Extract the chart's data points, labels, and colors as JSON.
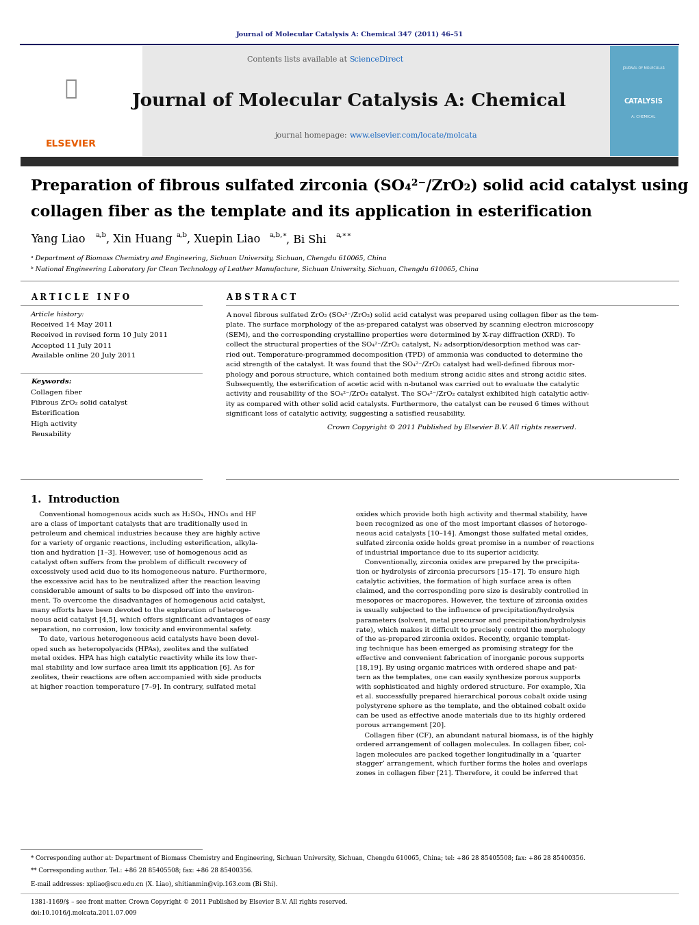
{
  "page_width": 10.21,
  "page_height": 13.51,
  "bg_color": "#ffffff",
  "header_journal_ref": "Journal of Molecular Catalysis A: Chemical 347 (2011) 46–51",
  "header_ref_color": "#1a237e",
  "contents_text": "Contents lists available at ",
  "sciencedirect_text": "ScienceDirect",
  "sciencedirect_color": "#1565c0",
  "journal_title": "Journal of Molecular Catalysis A: Chemical",
  "journal_homepage_text": "journal homepage: ",
  "journal_url": "www.elsevier.com/locate/molcata",
  "journal_url_color": "#1565c0",
  "header_bg_color": "#e8e8e8",
  "dark_bar_color": "#2d2d2d",
  "paper_title_line1": "Preparation of fibrous sulfated zirconia (SO₄²⁻/ZrO₂) solid acid catalyst using",
  "paper_title_line2": "collagen fiber as the template and its application in esterification",
  "affil_a": "ᵃ Department of Biomass Chemistry and Engineering, Sichuan University, Sichuan, Chengdu 610065, China",
  "affil_b": "ᵇ National Engineering Laboratory for Clean Technology of Leather Manufacture, Sichuan University, Sichuan, Chengdu 610065, China",
  "section_article_info": "A R T I C L E   I N F O",
  "section_abstract": "A B S T R A C T",
  "article_history_label": "Article history:",
  "received": "Received 14 May 2011",
  "received_revised": "Received in revised form 10 July 2011",
  "accepted": "Accepted 11 July 2011",
  "available_online": "Available online 20 July 2011",
  "keywords_label": "Keywords:",
  "keyword1": "Collagen fiber",
  "keyword2": "Fibrous ZrO₂ solid catalyst",
  "keyword3": "Esterification",
  "keyword4": "High activity",
  "keyword5": "Reusability",
  "copyright_text": "Crown Copyright © 2011 Published by Elsevier B.V. All rights reserved.",
  "intro_heading": "1.  Introduction",
  "footnote_star": "* Corresponding author at: Department of Biomass Chemistry and Engineering, Sichuan University, Sichuan, Chengdu 610065, China; tel: +86 28 85405508; fax: +86 28 85400356.",
  "footnote_dstar": "** Corresponding author. Tel.: +86 28 85405508; fax: +86 28 85400356.",
  "footnote_email": "E-mail addresses: xpliao@scu.edu.cn (X. Liao), shitianmin@vip.163.com (Bi Shi).",
  "footer_issn": "1381-1169/$ – see front matter. Crown Copyright © 2011 Published by Elsevier B.V. All rights reserved.",
  "footer_doi": "doi:10.1016/j.molcata.2011.07.009",
  "text_color": "#000000",
  "link_color": "#1565c0",
  "abstract_lines": [
    "A novel fibrous sulfated ZrO₂ (SO₄²⁻/ZrO₂) solid acid catalyst was prepared using collagen fiber as the tem-",
    "plate. The surface morphology of the as-prepared catalyst was observed by scanning electron microscopy",
    "(SEM), and the corresponding crystalline properties were determined by X-ray diffraction (XRD). To",
    "collect the structural properties of the SO₄²⁻/ZrO₂ catalyst, N₂ adsorption/desorption method was car-",
    "ried out. Temperature-programmed decomposition (TPD) of ammonia was conducted to determine the",
    "acid strength of the catalyst. It was found that the SO₄²⁻/ZrO₂ catalyst had well-defined fibrous mor-",
    "phology and porous structure, which contained both medium strong acidic sites and strong acidic sites.",
    "Subsequently, the esterification of acetic acid with n-butanol was carried out to evaluate the catalytic",
    "activity and reusability of the SO₄²⁻/ZrO₂ catalyst. The SO₄²⁻/ZrO₂ catalyst exhibited high catalytic activ-",
    "ity as compared with other solid acid catalysts. Furthermore, the catalyst can be reused 6 times without",
    "significant loss of catalytic activity, suggesting a satisfied reusability."
  ],
  "intro1_lines": [
    "    Conventional homogenous acids such as H₂SO₄, HNO₃ and HF",
    "are a class of important catalysts that are traditionally used in",
    "petroleum and chemical industries because they are highly active",
    "for a variety of organic reactions, including esterification, alkyla-",
    "tion and hydration [1–3]. However, use of homogenous acid as",
    "catalyst often suffers from the problem of difficult recovery of",
    "excessively used acid due to its homogeneous nature. Furthermore,",
    "the excessive acid has to be neutralized after the reaction leaving",
    "considerable amount of salts to be disposed off into the environ-",
    "ment. To overcome the disadvantages of homogenous acid catalyst,",
    "many efforts have been devoted to the exploration of heteroge-",
    "neous acid catalyst [4,5], which offers significant advantages of easy",
    "separation, no corrosion, low toxicity and environmental safety.",
    "    To date, various heterogeneous acid catalysts have been devel-",
    "oped such as heteropolyacids (HPAs), zeolites and the sulfated",
    "metal oxides. HPA has high catalytic reactivity while its low ther-",
    "mal stability and low surface area limit its application [6]. As for",
    "zeolites, their reactions are often accompanied with side products",
    "at higher reaction temperature [7–9]. In contrary, sulfated metal"
  ],
  "intro2_lines": [
    "oxides which provide both high activity and thermal stability, have",
    "been recognized as one of the most important classes of heteroge-",
    "neous acid catalysts [10–14]. Amongst those sulfated metal oxides,",
    "sulfated zirconia oxide holds great promise in a number of reactions",
    "of industrial importance due to its superior acidicity.",
    "    Conventionally, zirconia oxides are prepared by the precipita-",
    "tion or hydrolysis of zirconia precursors [15–17]. To ensure high",
    "catalytic activities, the formation of high surface area is often",
    "claimed, and the corresponding pore size is desirably controlled in",
    "mesopores or macropores. However, the texture of zirconia oxides",
    "is usually subjected to the influence of precipitation/hydrolysis",
    "parameters (solvent, metal precursor and precipitation/hydrolysis",
    "rate), which makes it difficult to precisely control the morphology",
    "of the as-prepared zirconia oxides. Recently, organic templat-",
    "ing technique has been emerged as promising strategy for the",
    "effective and convenient fabrication of inorganic porous supports",
    "[18,19]. By using organic matrices with ordered shape and pat-",
    "tern as the templates, one can easily synthesize porous supports",
    "with sophisticated and highly ordered structure. For example, Xia",
    "et al. successfully prepared hierarchical porous cobalt oxide using",
    "polystyrene sphere as the template, and the obtained cobalt oxide",
    "can be used as effective anode materials due to its highly ordered",
    "porous arrangement [20].",
    "    Collagen fiber (CF), an abundant natural biomass, is of the highly",
    "ordered arrangement of collagen molecules. In collagen fiber, col-",
    "lagen molecules are packed together longitudinally in a ‘quarter",
    "stagger’ arrangement, which further forms the holes and overlaps",
    "zones in collagen fiber [21]. Therefore, it could be inferred that"
  ]
}
